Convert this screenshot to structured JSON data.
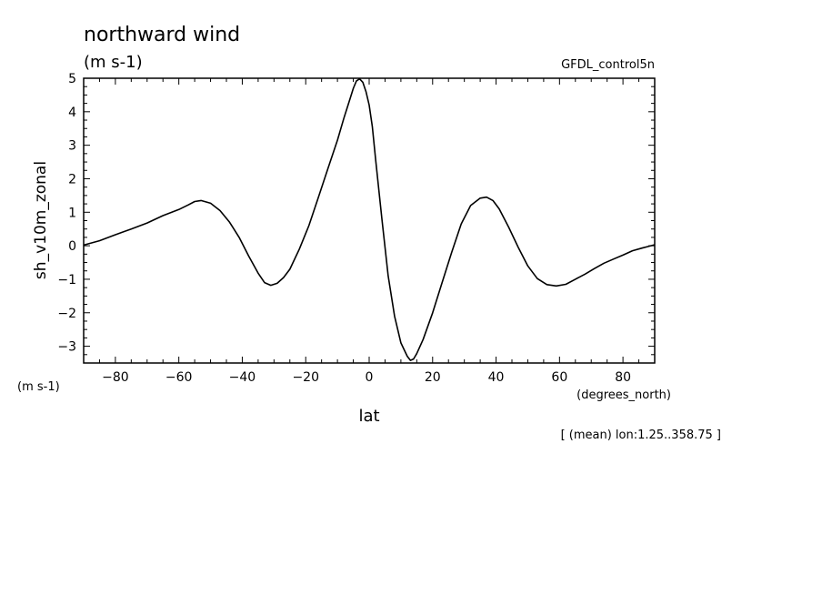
{
  "chart_data": {
    "type": "line",
    "title": "northward wind",
    "subtitle": "(m s-1)",
    "dataset_label": "GFDL_control5n",
    "ylabel": "sh_v10m_zonal",
    "y_units": "(m s-1)",
    "xlabel": "lat",
    "x_units": "(degrees_north)",
    "footnote": "[ (mean) lon:1.25..358.75 ]",
    "xlim": [
      -90,
      90
    ],
    "ylim": [
      -3.5,
      5
    ],
    "xticks": [
      -80,
      -60,
      -40,
      -20,
      0,
      20,
      40,
      60,
      80
    ],
    "xtick_labels": [
      "−80",
      "−60",
      "−40",
      "−20",
      "0",
      "20",
      "40",
      "60",
      "80"
    ],
    "yticks": [
      -3,
      -2,
      -1,
      0,
      1,
      2,
      3,
      4,
      5
    ],
    "ytick_labels": [
      "−3",
      "−2",
      "−1",
      "0",
      "1",
      "2",
      "3",
      "4",
      "5"
    ],
    "grid": false,
    "series": [
      {
        "x": [
          -90,
          -85,
          -80,
          -75,
          -70,
          -65,
          -60,
          -57,
          -55,
          -53,
          -50,
          -47,
          -44,
          -41,
          -38,
          -35,
          -33,
          -31,
          -29,
          -27,
          -25,
          -22,
          -19,
          -16,
          -13,
          -10,
          -8,
          -6,
          -5,
          -4,
          -3,
          -2,
          -1,
          0,
          1,
          2,
          4,
          6,
          8,
          10,
          12,
          13,
          14,
          15,
          17,
          20,
          23,
          26,
          29,
          32,
          35,
          37,
          39,
          41,
          44,
          47,
          50,
          53,
          56,
          59,
          62,
          65,
          68,
          71,
          74,
          77,
          80,
          83,
          86,
          88,
          90
        ],
        "y": [
          0.02,
          0.15,
          0.33,
          0.5,
          0.68,
          0.9,
          1.08,
          1.22,
          1.32,
          1.35,
          1.27,
          1.05,
          0.7,
          0.25,
          -0.3,
          -0.82,
          -1.1,
          -1.18,
          -1.12,
          -0.95,
          -0.7,
          -0.1,
          0.6,
          1.45,
          2.3,
          3.15,
          3.8,
          4.4,
          4.7,
          4.92,
          4.98,
          4.88,
          4.6,
          4.2,
          3.55,
          2.6,
          0.8,
          -0.9,
          -2.1,
          -2.9,
          -3.3,
          -3.42,
          -3.38,
          -3.22,
          -2.8,
          -2.0,
          -1.1,
          -0.2,
          0.65,
          1.2,
          1.42,
          1.45,
          1.35,
          1.1,
          0.55,
          -0.05,
          -0.6,
          -0.98,
          -1.16,
          -1.2,
          -1.15,
          -1.0,
          -0.85,
          -0.68,
          -0.52,
          -0.4,
          -0.28,
          -0.15,
          -0.07,
          -0.02,
          0.03
        ]
      }
    ]
  }
}
